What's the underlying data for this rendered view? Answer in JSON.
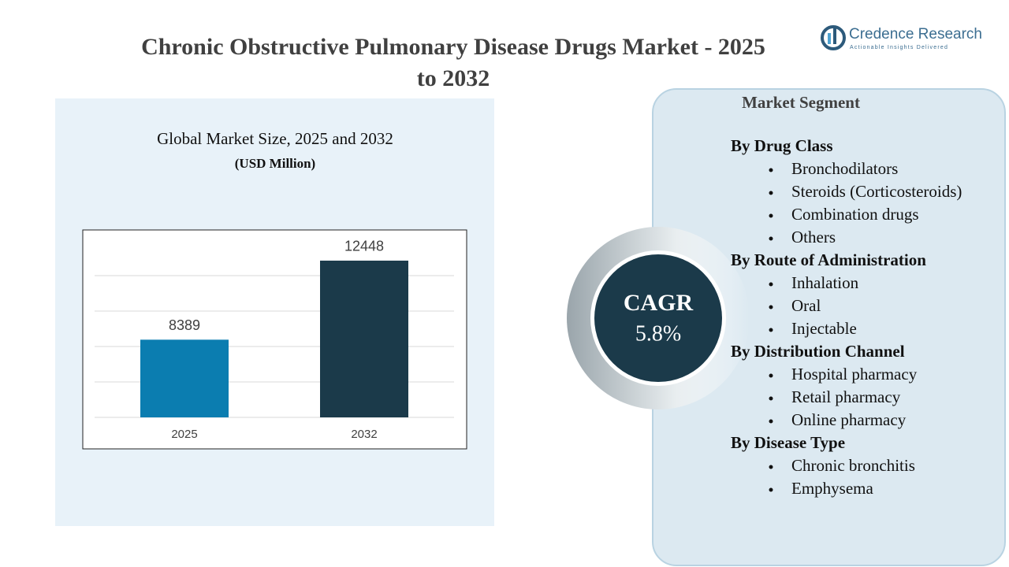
{
  "header": {
    "title": "Chronic Obstructive Pulmonary Disease Drugs Market - 2025 to 2032",
    "logo": "Credence Research",
    "tagline": "Actionable Insights Delivered"
  },
  "chart_data": {
    "type": "bar",
    "title": "Global Market Size, 2025 and 2032",
    "subtitle": "(USD Million)",
    "categories": [
      "2025",
      "2032"
    ],
    "values": [
      8389,
      12448
    ],
    "colors": [
      "#0b7db0",
      "#1b3a4a"
    ],
    "ylim": [
      4400,
      13700
    ],
    "grid": true
  },
  "cagr": {
    "label": "CAGR",
    "value": "5.8%"
  },
  "segments": {
    "title": "Market Segment",
    "groups": [
      {
        "name": "By Drug Class",
        "items": [
          "Bronchodilators",
          "Steroids (Corticosteroids)",
          "Combination drugs",
          "Others"
        ]
      },
      {
        "name": "By Route of Administration",
        "items": [
          "Inhalation",
          "Oral",
          "Injectable"
        ]
      },
      {
        "name": "By Distribution Channel",
        "items": [
          "Hospital pharmacy",
          "Retail pharmacy",
          "Online pharmacy"
        ]
      },
      {
        "name": "By Disease Type",
        "items": [
          "Chronic bronchitis",
          "Emphysema"
        ]
      }
    ]
  }
}
